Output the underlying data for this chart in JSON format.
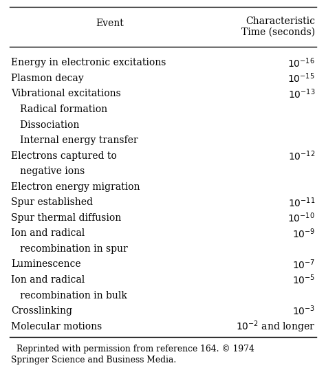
{
  "title_col1": "Event",
  "title_col2_line1": "Characteristic",
  "title_col2_line2": "Time (seconds)",
  "rows": [
    {
      "event_lines": [
        "Energy in electronic excitations"
      ],
      "time": "$10^{-16}$"
    },
    {
      "event_lines": [
        "Plasmon decay"
      ],
      "time": "$10^{-15}$"
    },
    {
      "event_lines": [
        "Vibrational excitations"
      ],
      "time": "$10^{-13}$"
    },
    {
      "event_lines": [
        "   Radical formation"
      ],
      "time": ""
    },
    {
      "event_lines": [
        "   Dissociation"
      ],
      "time": ""
    },
    {
      "event_lines": [
        "   Internal energy transfer"
      ],
      "time": ""
    },
    {
      "event_lines": [
        "Electrons captured to",
        "   negative ions"
      ],
      "time": "$10^{-12}$"
    },
    {
      "event_lines": [
        "Electron energy migration"
      ],
      "time": ""
    },
    {
      "event_lines": [
        "Spur established"
      ],
      "time": "$10^{-11}$"
    },
    {
      "event_lines": [
        "Spur thermal diffusion"
      ],
      "time": "$10^{-10}$"
    },
    {
      "event_lines": [
        "Ion and radical",
        "   recombination in spur"
      ],
      "time": "$10^{-9}$"
    },
    {
      "event_lines": [
        "Luminescence"
      ],
      "time": "$10^{-7}$"
    },
    {
      "event_lines": [
        "Ion and radical",
        "   recombination in bulk"
      ],
      "time": "$10^{-5}$"
    },
    {
      "event_lines": [
        "Crosslinking"
      ],
      "time": "$10^{-3}$"
    },
    {
      "event_lines": [
        "Molecular motions"
      ],
      "time": "$10^{-2}$ and longer"
    }
  ],
  "footnote_line1": "Reprinted with permission from reference 164. © 1974",
  "footnote_line2": "Springer Science and Business Media.",
  "bg_color": "#ffffff",
  "text_color": "#000000",
  "font_size": 10.0
}
